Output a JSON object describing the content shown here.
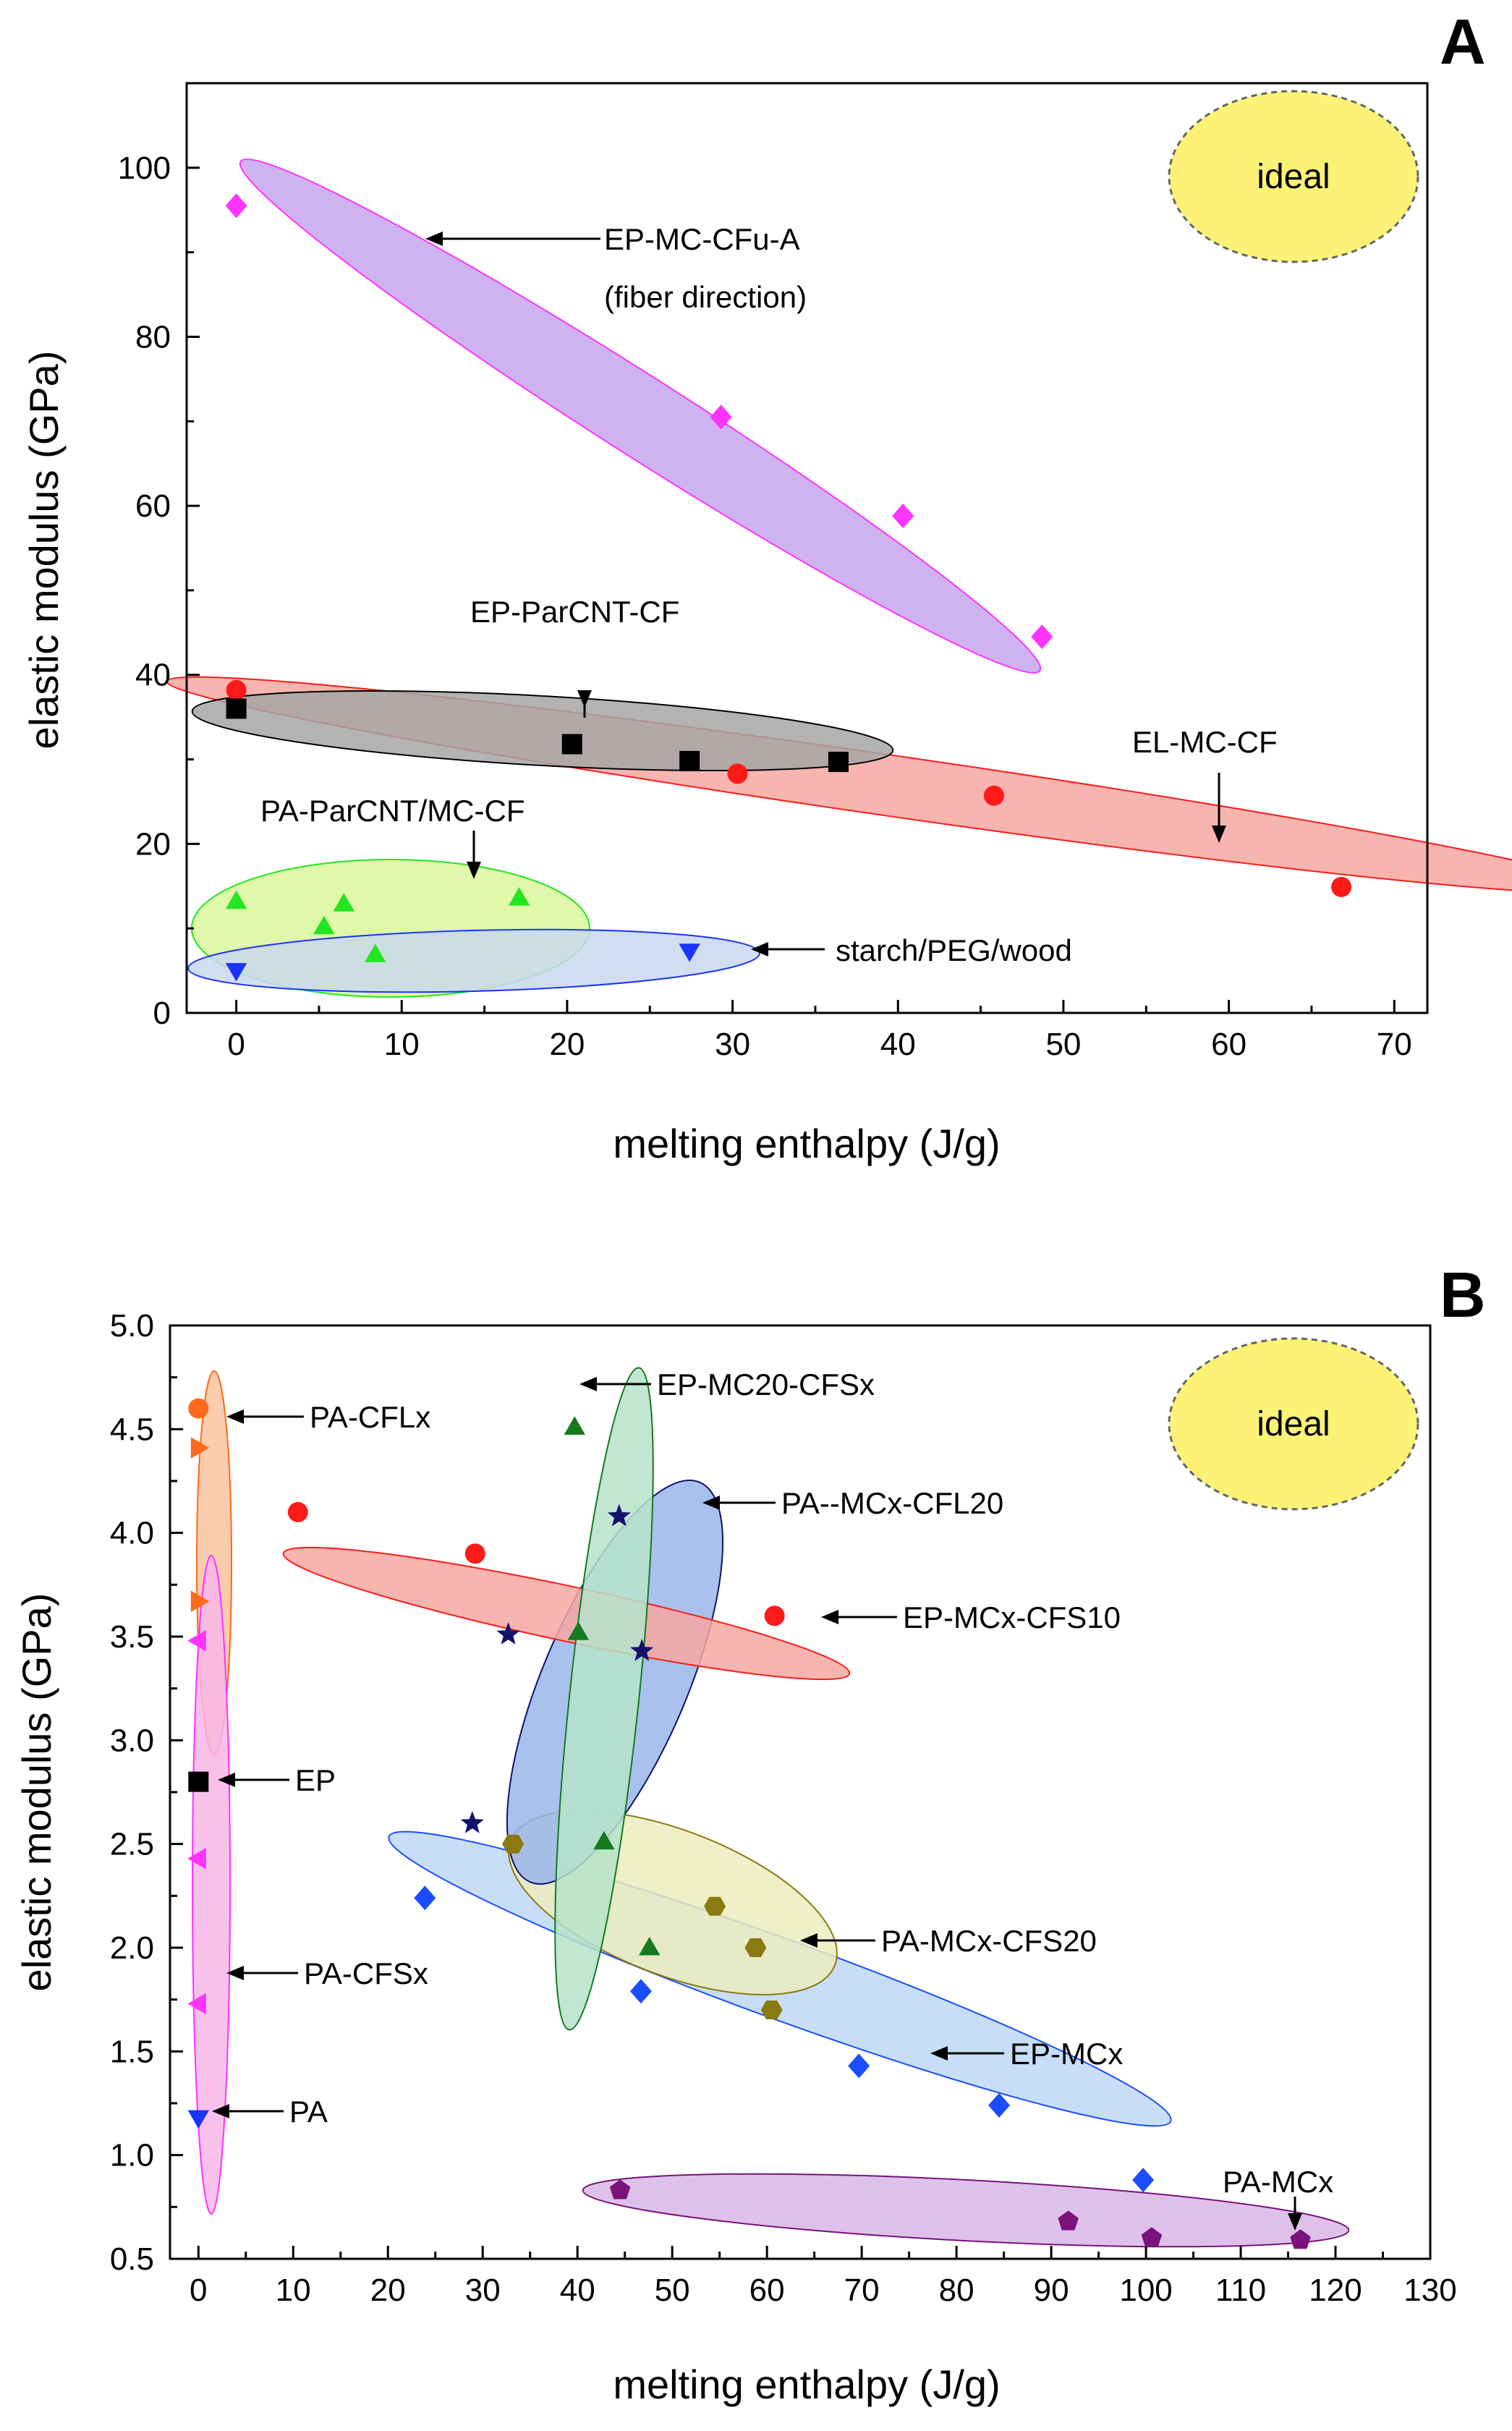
{
  "chart_data": [
    {
      "panel": "A",
      "type": "scatter",
      "xlabel": "melting enthalpy (J/g)",
      "ylabel": "elastic modulus (GPa)",
      "xlim": [
        -3,
        72
      ],
      "ylim": [
        0,
        110
      ],
      "xticks": [
        0,
        10,
        20,
        30,
        40,
        50,
        60,
        70
      ],
      "yticks": [
        0,
        20,
        40,
        60,
        80,
        100
      ],
      "ideal_label": "ideal",
      "ideal_color": "#fbf276",
      "series": [
        {
          "name": "EP-MC-CFu-A",
          "marker": "diamond",
          "color": "#ff33ff",
          "x": [
            0,
            29.3,
            40.3,
            48.7
          ],
          "y": [
            95.5,
            70.5,
            58.8,
            44.5
          ],
          "region_color": "#c7a6ee"
        },
        {
          "name": "EL-MC-CF",
          "marker": "circle",
          "color": "#ff1a1a",
          "x": [
            0,
            30.3,
            45.8,
            66.8
          ],
          "y": [
            38.2,
            28.3,
            25.7,
            14.9
          ],
          "region_color": "#f7a7a1"
        },
        {
          "name": "EP-ParCNT-CF",
          "marker": "square",
          "color": "#000000",
          "x": [
            0,
            20.3,
            27.4,
            36.4
          ],
          "y": [
            36.0,
            31.8,
            29.8,
            29.7
          ],
          "region_color": "#a6a6a6"
        },
        {
          "name": "PA-ParCNT/MC-CF",
          "marker": "triangle-up",
          "color": "#22e622",
          "x": [
            0,
            5.3,
            6.5,
            8.4,
            17.1
          ],
          "y": [
            13.2,
            10.2,
            12.9,
            6.9,
            13.6
          ],
          "region_color": "#d9f79a"
        },
        {
          "name": "starch/PEG/wood",
          "marker": "triangle-down",
          "color": "#1a33ff",
          "x": [
            0,
            27.4
          ],
          "y": [
            5.0,
            7.3
          ],
          "region_color": "#c9d8ee"
        }
      ],
      "annotations": [
        {
          "text": "EP-MC-CFu-A",
          "subtext": "(fiber direction)"
        },
        {
          "text": "EP-ParCNT-CF"
        },
        {
          "text": "EL-MC-CF"
        },
        {
          "text": "PA-ParCNT/MC-CF"
        },
        {
          "text": "starch/PEG/wood"
        }
      ]
    },
    {
      "panel": "B",
      "type": "scatter",
      "xlabel": "melting enthalpy (J/g)",
      "ylabel": "elastic modulus (GPa)",
      "xlim": [
        -3,
        130
      ],
      "ylim": [
        0.5,
        5.0
      ],
      "xticks": [
        0,
        10,
        20,
        30,
        40,
        50,
        60,
        70,
        80,
        90,
        100,
        110,
        120,
        130
      ],
      "yticks": [
        "0.5",
        "1.0",
        "1.5",
        "2.0",
        "2.5",
        "3.0",
        "3.5",
        "4.0",
        "4.5",
        "5.0"
      ],
      "ideal_label": "ideal",
      "ideal_color": "#fbf276",
      "series": [
        {
          "name": "PA-CFLx",
          "marker": "circle",
          "color": "#ff6a1a",
          "x": [
            0
          ],
          "y": [
            4.6
          ],
          "region_color": "#f9c3a0"
        },
        {
          "name": "PA-CFLx",
          "marker": "triangle-right",
          "color": "#ff6a1a",
          "x": [
            0,
            0
          ],
          "y": [
            4.41,
            3.67
          ],
          "region_color": "#f9c3a0"
        },
        {
          "name": "PA-CFSx",
          "marker": "triangle-left",
          "color": "#ff33ff",
          "x": [
            0,
            0,
            0
          ],
          "y": [
            3.48,
            2.43,
            1.73
          ],
          "region_color": "#f7b6e6"
        },
        {
          "name": "EP",
          "marker": "square",
          "color": "#000000",
          "x": [
            0
          ],
          "y": [
            2.8
          ]
        },
        {
          "name": "PA",
          "marker": "triangle-down",
          "color": "#1a33ff",
          "x": [
            0
          ],
          "y": [
            1.18
          ]
        },
        {
          "name": "EP-MC20-CFSx",
          "marker": "triangle-up",
          "color": "#157a1e",
          "x": [
            39.7,
            40.1,
            42.8,
            47.6
          ],
          "y": [
            4.51,
            3.52,
            2.51,
            2.0
          ],
          "region_color": "#b6e3c9"
        },
        {
          "name": "PA--MCx-CFL20",
          "marker": "star",
          "color": "#12126b",
          "x": [
            44.4,
            32.7,
            46.8,
            28.9
          ],
          "y": [
            4.08,
            3.51,
            3.43,
            2.6
          ],
          "region_color": "#9ab6ea"
        },
        {
          "name": "EP-MCx-CFS10",
          "marker": "circle",
          "color": "#ff1a1a",
          "x": [
            10.5,
            29.2,
            60.8
          ],
          "y": [
            4.1,
            3.9,
            3.6
          ],
          "region_color": "#f7a7a1"
        },
        {
          "name": "PA-MCx-CFS20",
          "marker": "hexagon",
          "color": "#8a7a12",
          "x": [
            33.2,
            54.5,
            58.8,
            60.5
          ],
          "y": [
            2.5,
            2.2,
            2.0,
            1.7
          ],
          "region_color": "#ececbe"
        },
        {
          "name": "EP-MCx",
          "marker": "diamond",
          "color": "#1a4dff",
          "x": [
            23.9,
            46.7,
            69.7,
            84.5,
            99.7
          ],
          "y": [
            2.24,
            1.79,
            1.43,
            1.24,
            0.88
          ],
          "region_color": "#bed8f7"
        },
        {
          "name": "PA-MCx",
          "marker": "pentagon",
          "color": "#7a127a",
          "x": [
            44.5,
            91.8,
            100.6,
            116.3
          ],
          "y": [
            0.83,
            0.68,
            0.6,
            0.59
          ],
          "region_color": "#d7b6e6"
        }
      ],
      "annotations": [
        {
          "text": "PA-CFLx"
        },
        {
          "text": "EP"
        },
        {
          "text": "PA-CFSx"
        },
        {
          "text": "PA"
        },
        {
          "text": "EP-MC20-CFSx"
        },
        {
          "text": "PA--MCx-CFL20"
        },
        {
          "text": "EP-MCx-CFS10"
        },
        {
          "text": "PA-MCx-CFS20"
        },
        {
          "text": "EP-MCx"
        },
        {
          "text": "PA-MCx"
        }
      ]
    }
  ]
}
